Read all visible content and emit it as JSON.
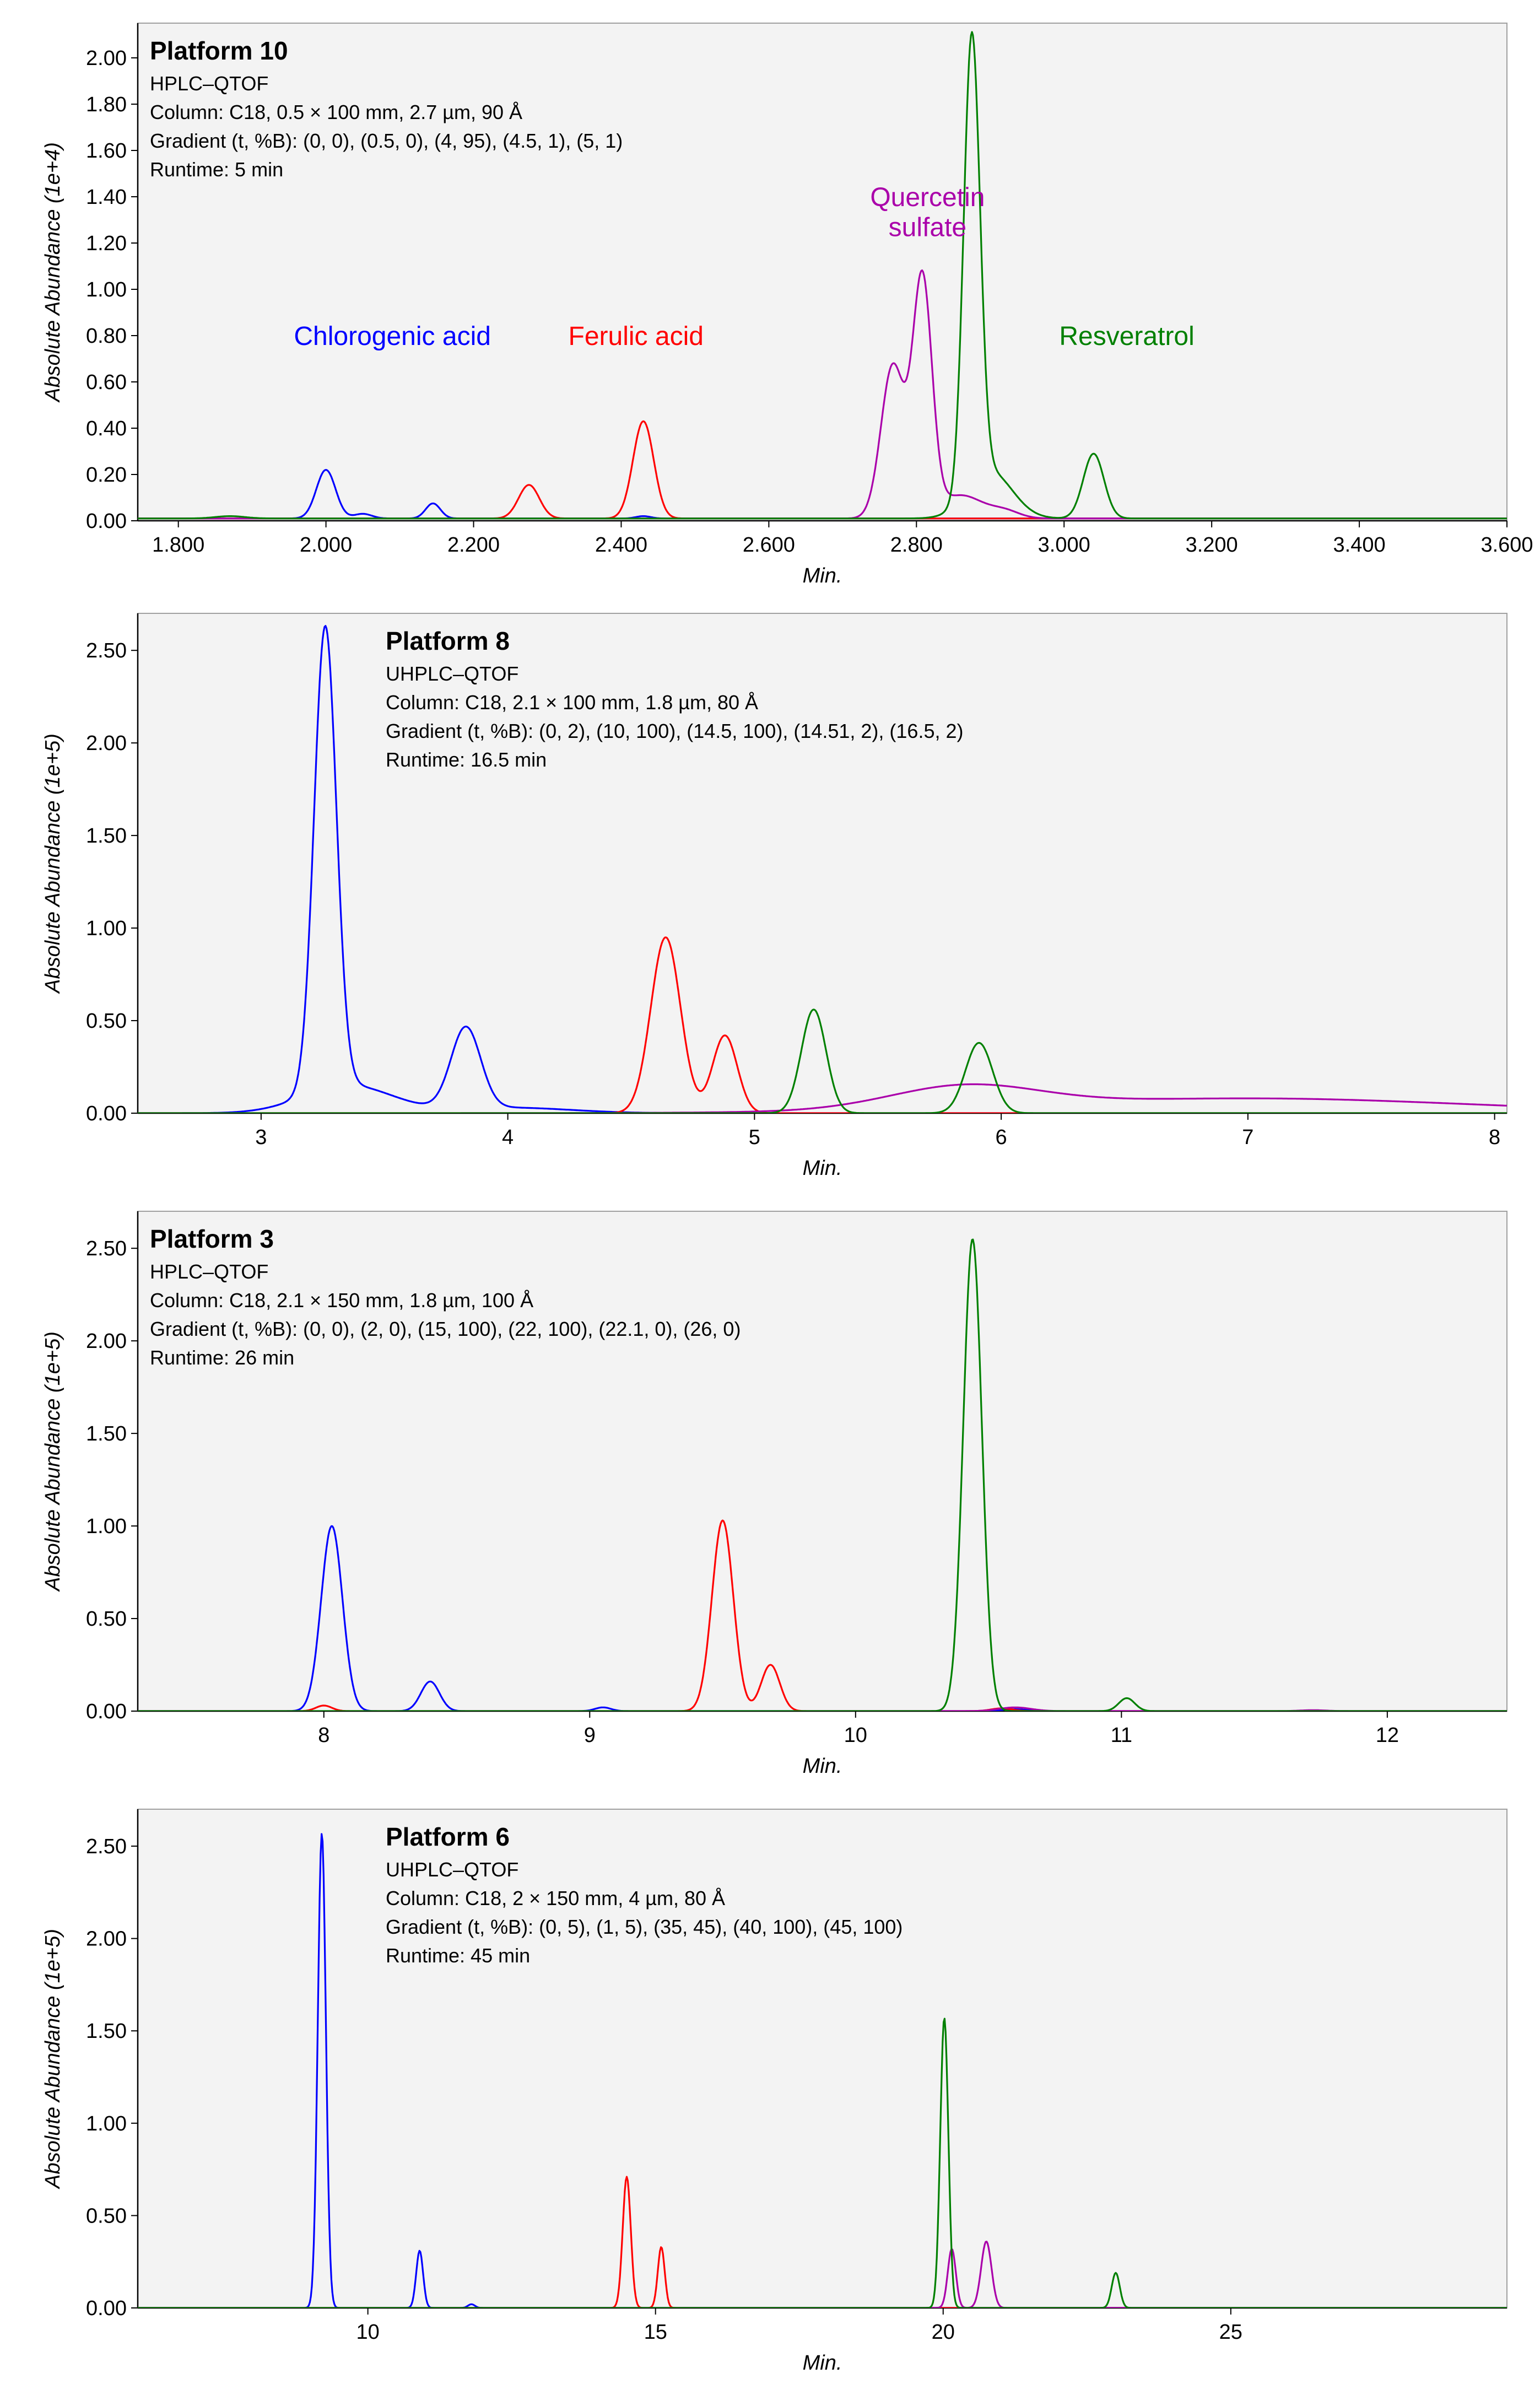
{
  "chart_data": [
    {
      "type": "line",
      "title": "Platform 10",
      "info": [
        "HPLC–QTOF",
        "Column: C18, 0.5 × 100 mm, 2.7 µm, 90 Å",
        "Gradient (t, %B): (0, 0), (0.5, 0), (4, 95), (4.5, 1), (5, 1)",
        "Runtime: 5 min"
      ],
      "xlabel": "Min.",
      "ylabel": "Absolute Abundance (1e+4)",
      "xlim": [
        1.745,
        3.6
      ],
      "ylim": [
        0,
        2.15
      ],
      "xticks": [
        1.8,
        2.0,
        2.2,
        2.4,
        2.6,
        2.8,
        3.0,
        3.2,
        3.4,
        3.6
      ],
      "xtick_labels": [
        "1.800",
        "2.000",
        "2.200",
        "2.400",
        "2.600",
        "2.800",
        "3.000",
        "3.200",
        "3.400",
        "3.600"
      ],
      "yticks": [
        0,
        0.2,
        0.4,
        0.6,
        0.8,
        1.0,
        1.2,
        1.4,
        1.6,
        1.8,
        2.0
      ],
      "ytick_labels": [
        "0.00",
        "0.20",
        "0.40",
        "0.60",
        "0.80",
        "1.00",
        "1.20",
        "1.40",
        "1.60",
        "1.80",
        "2.00"
      ],
      "baseline": 0.01,
      "series": [
        {
          "name": "Chlorogenic acid",
          "color": "#0000ff",
          "peaks": [
            [
              2.0,
              0.21,
              0.013
            ],
            [
              2.05,
              0.02,
              0.012
            ],
            [
              2.145,
              0.065,
              0.01
            ],
            [
              2.43,
              0.01,
              0.01
            ]
          ]
        },
        {
          "name": "Ferulic acid",
          "color": "#ff0000",
          "peaks": [
            [
              2.275,
              0.145,
              0.014
            ],
            [
              2.43,
              0.42,
              0.014
            ]
          ]
        },
        {
          "name": "Quercetin sulfate",
          "color": "#aa00aa",
          "peaks": [
            [
              2.768,
              0.66,
              0.016
            ],
            [
              2.808,
              1.02,
              0.013
            ],
            [
              2.86,
              0.1,
              0.03
            ],
            [
              2.92,
              0.03,
              0.02
            ]
          ]
        },
        {
          "name": "Resveratrol",
          "color": "#008000",
          "peaks": [
            [
              2.875,
              1.96,
              0.011
            ],
            [
              2.9,
              0.2,
              0.03
            ],
            [
              3.04,
              0.28,
              0.014
            ],
            [
              1.87,
              0.01,
              0.02
            ]
          ]
        }
      ],
      "annotations": [
        {
          "text": "Chlorogenic acid",
          "color": "#0000ff",
          "x": 2.09,
          "y": 0.76
        },
        {
          "text": "Ferulic acid",
          "color": "#ff0000",
          "x": 2.42,
          "y": 0.76
        },
        {
          "text": "Quercetin",
          "color": "#aa00aa",
          "x": 2.815,
          "y": 1.36
        },
        {
          "text": "sulfate",
          "color": "#aa00aa",
          "x": 2.815,
          "y": 1.23
        },
        {
          "text": "Resveratrol",
          "color": "#008000",
          "x": 3.085,
          "y": 0.76
        }
      ]
    },
    {
      "type": "line",
      "title": "Platform 8",
      "info": [
        "UHPLC–QTOF",
        "Column: C18, 2.1 × 100 mm, 1.8 µm, 80 Å",
        "Gradient (t, %B): (0, 2), (10, 100), (14.5, 100), (14.51, 2), (16.5, 2)",
        "Runtime: 16.5 min"
      ],
      "xlabel": "Min.",
      "ylabel": "Absolute Abundance (1e+5)",
      "xlim": [
        2.5,
        8.05
      ],
      "ylim": [
        0,
        2.7
      ],
      "xticks": [
        3,
        4,
        5,
        6,
        7,
        8
      ],
      "xtick_labels": [
        "3",
        "4",
        "5",
        "6",
        "7",
        "8"
      ],
      "yticks": [
        0,
        0.5,
        1.0,
        1.5,
        2.0,
        2.5
      ],
      "ytick_labels": [
        "0.00",
        "0.50",
        "1.00",
        "1.50",
        "2.00",
        "2.50"
      ],
      "baseline": 0,
      "series": [
        {
          "name": "Chlorogenic acid",
          "color": "#0000ff",
          "peaks": [
            [
              3.26,
              2.5,
              0.045
            ],
            [
              3.35,
              0.15,
              0.18
            ],
            [
              3.83,
              0.44,
              0.06
            ],
            [
              4.0,
              0.03,
              0.25
            ]
          ]
        },
        {
          "name": "Ferulic acid",
          "color": "#ff0000",
          "peaks": [
            [
              4.64,
              0.95,
              0.06
            ],
            [
              4.88,
              0.42,
              0.05
            ]
          ]
        },
        {
          "name": "Quercetin sulfate",
          "color": "#aa00aa",
          "peaks": [
            [
              5.85,
              0.12,
              0.3
            ],
            [
              7.0,
              0.08,
              0.9
            ]
          ]
        },
        {
          "name": "Resveratrol",
          "color": "#008000",
          "peaks": [
            [
              5.24,
              0.56,
              0.05
            ],
            [
              5.91,
              0.38,
              0.055
            ]
          ]
        }
      ]
    },
    {
      "type": "line",
      "title": "Platform 3",
      "info": [
        "HPLC–QTOF",
        "Column: C18, 2.1 × 150 mm, 1.8 µm, 100 Å",
        "Gradient (t, %B): (0, 0), (2, 0), (15, 100), (22, 100), (22.1, 0), (26, 0)",
        "Runtime: 26 min"
      ],
      "xlabel": "Min.",
      "ylabel": "Absolute Abundance (1e+5)",
      "xlim": [
        7.3,
        12.45
      ],
      "ylim": [
        0,
        2.7
      ],
      "xticks": [
        8,
        9,
        10,
        11,
        12
      ],
      "xtick_labels": [
        "8",
        "9",
        "10",
        "11",
        "12"
      ],
      "yticks": [
        0,
        0.5,
        1.0,
        1.5,
        2.0,
        2.5
      ],
      "ytick_labels": [
        "0.00",
        "0.50",
        "1.00",
        "1.50",
        "2.00",
        "2.50"
      ],
      "baseline": 0,
      "series": [
        {
          "name": "Chlorogenic acid",
          "color": "#0000ff",
          "peaks": [
            [
              8.03,
              1.0,
              0.04
            ],
            [
              8.4,
              0.16,
              0.035
            ],
            [
              9.05,
              0.02,
              0.03
            ],
            [
              10.6,
              0.01,
              0.05
            ]
          ]
        },
        {
          "name": "Ferulic acid",
          "color": "#ff0000",
          "peaks": [
            [
              8.0,
              0.03,
              0.03
            ],
            [
              9.5,
              1.03,
              0.04
            ],
            [
              9.68,
              0.25,
              0.035
            ],
            [
              10.55,
              0.015,
              0.04
            ]
          ]
        },
        {
          "name": "Quercetin sulfate",
          "color": "#aa00aa",
          "peaks": [
            [
              10.6,
              0.02,
              0.06
            ],
            [
              11.72,
              0.005,
              0.05
            ]
          ]
        },
        {
          "name": "Resveratrol",
          "color": "#008000",
          "peaks": [
            [
              10.44,
              2.55,
              0.035
            ],
            [
              11.02,
              0.07,
              0.03
            ]
          ]
        }
      ]
    },
    {
      "type": "line",
      "title": "Platform 6",
      "info": [
        "UHPLC–QTOF",
        "Column: C18, 2 × 150 mm, 4 µm, 80 Å",
        "Gradient (t, %B): (0, 5), (1, 5), (35, 45), (40, 100), (45, 100)",
        "Runtime: 45 min"
      ],
      "xlabel": "Min.",
      "ylabel": "Absolute Abundance (1e+5)",
      "xlim": [
        6,
        29.8
      ],
      "ylim": [
        0,
        2.7
      ],
      "xticks": [
        10,
        15,
        20,
        25
      ],
      "xtick_labels": [
        "10",
        "15",
        "20",
        "25"
      ],
      "yticks": [
        0,
        0.5,
        1.0,
        1.5,
        2.0,
        2.5
      ],
      "ytick_labels": [
        "0.00",
        "0.50",
        "1.00",
        "1.50",
        "2.00",
        "2.50"
      ],
      "baseline": 0,
      "series": [
        {
          "name": "Chlorogenic acid",
          "color": "#0000ff",
          "peaks": [
            [
              9.2,
              2.57,
              0.07
            ],
            [
              10.9,
              0.31,
              0.06
            ],
            [
              11.8,
              0.02,
              0.06
            ]
          ]
        },
        {
          "name": "Ferulic acid",
          "color": "#ff0000",
          "peaks": [
            [
              14.5,
              0.71,
              0.07
            ],
            [
              15.1,
              0.33,
              0.06
            ]
          ]
        },
        {
          "name": "Quercetin sulfate",
          "color": "#aa00aa",
          "peaks": [
            [
              20.15,
              0.32,
              0.07
            ],
            [
              20.75,
              0.36,
              0.09
            ]
          ]
        },
        {
          "name": "Resveratrol",
          "color": "#008000",
          "peaks": [
            [
              20.02,
              1.57,
              0.07
            ],
            [
              23.0,
              0.19,
              0.07
            ]
          ]
        }
      ]
    }
  ]
}
